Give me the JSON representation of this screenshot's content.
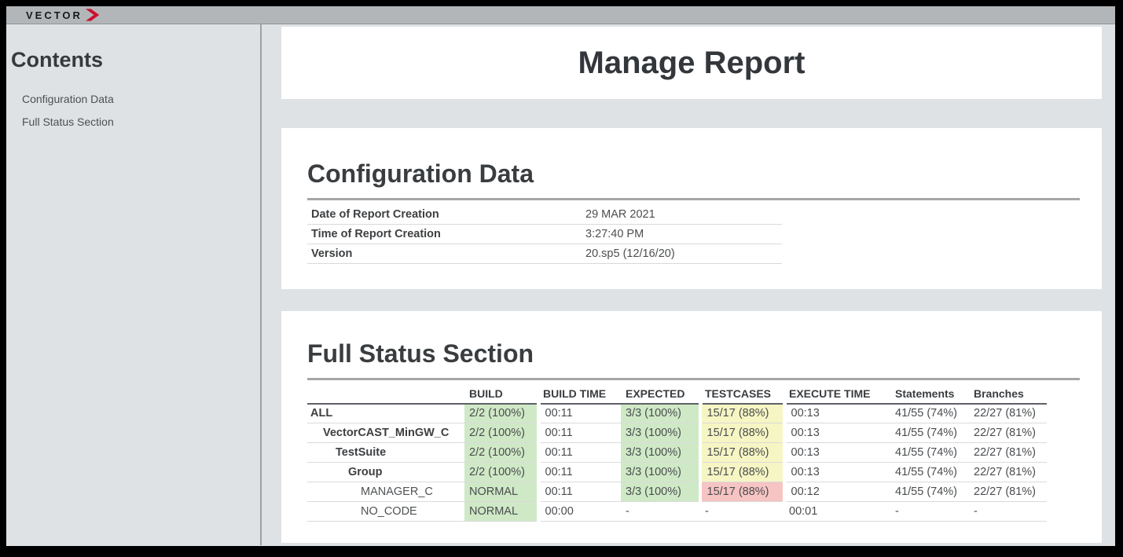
{
  "brand": {
    "logo_text": "VECTOR",
    "chevron_color": "#ce0e2d",
    "topbar_color": "#b2b6b9"
  },
  "sidebar": {
    "title": "Contents",
    "items": [
      {
        "label": "Configuration Data"
      },
      {
        "label": "Full Status Section"
      }
    ]
  },
  "report": {
    "title": "Manage Report"
  },
  "config_section": {
    "heading": "Configuration Data",
    "rows": [
      {
        "label": "Date of Report Creation",
        "value": "29 MAR 2021"
      },
      {
        "label": "Time of Report Creation",
        "value": "3:27:40 PM"
      },
      {
        "label": "Version",
        "value": "20.sp5 (12/16/20)"
      }
    ]
  },
  "status_section": {
    "heading": "Full Status Section",
    "columns": [
      "",
      "BUILD",
      "BUILD TIME",
      "EXPECTED",
      "TESTCASES",
      "EXECUTE TIME",
      "Statements",
      "Branches"
    ],
    "colors": {
      "pass": "#cfe9c6",
      "partial": "#f6f6c4",
      "fail": "#f6c4c3"
    },
    "rows": [
      {
        "name": "ALL",
        "indent": 0,
        "bold": true,
        "cells": [
          {
            "text": "2/2 (100%)",
            "status": "pass"
          },
          {
            "text": "00:11"
          },
          {
            "text": "3/3 (100%)",
            "status": "pass"
          },
          {
            "text": "15/17 (88%)",
            "status": "partial"
          },
          {
            "text": "00:13"
          },
          {
            "text": "41/55 (74%)"
          },
          {
            "text": "22/27 (81%)"
          }
        ]
      },
      {
        "name": "VectorCAST_MinGW_C",
        "indent": 1,
        "bold": true,
        "cells": [
          {
            "text": "2/2 (100%)",
            "status": "pass"
          },
          {
            "text": "00:11"
          },
          {
            "text": "3/3 (100%)",
            "status": "pass"
          },
          {
            "text": "15/17 (88%)",
            "status": "partial"
          },
          {
            "text": "00:13"
          },
          {
            "text": "41/55 (74%)"
          },
          {
            "text": "22/27 (81%)"
          }
        ]
      },
      {
        "name": "TestSuite",
        "indent": 2,
        "bold": true,
        "cells": [
          {
            "text": "2/2 (100%)",
            "status": "pass"
          },
          {
            "text": "00:11"
          },
          {
            "text": "3/3 (100%)",
            "status": "pass"
          },
          {
            "text": "15/17 (88%)",
            "status": "partial"
          },
          {
            "text": "00:13"
          },
          {
            "text": "41/55 (74%)"
          },
          {
            "text": "22/27 (81%)"
          }
        ]
      },
      {
        "name": "Group",
        "indent": 3,
        "bold": true,
        "cells": [
          {
            "text": "2/2 (100%)",
            "status": "pass"
          },
          {
            "text": "00:11"
          },
          {
            "text": "3/3 (100%)",
            "status": "pass"
          },
          {
            "text": "15/17 (88%)",
            "status": "partial"
          },
          {
            "text": "00:13"
          },
          {
            "text": "41/55 (74%)"
          },
          {
            "text": "22/27 (81%)"
          }
        ]
      },
      {
        "name": "MANAGER_C",
        "indent": 4,
        "bold": false,
        "cells": [
          {
            "text": "NORMAL",
            "status": "pass"
          },
          {
            "text": "00:11"
          },
          {
            "text": "3/3 (100%)",
            "status": "pass"
          },
          {
            "text": "15/17 (88%)",
            "status": "fail"
          },
          {
            "text": "00:12"
          },
          {
            "text": "41/55 (74%)"
          },
          {
            "text": "22/27 (81%)"
          }
        ]
      },
      {
        "name": "NO_CODE",
        "indent": 4,
        "bold": false,
        "cells": [
          {
            "text": "NORMAL",
            "status": "pass"
          },
          {
            "text": "00:00"
          },
          {
            "text": "-"
          },
          {
            "text": "-"
          },
          {
            "text": "00:01"
          },
          {
            "text": "-"
          },
          {
            "text": "-"
          }
        ]
      }
    ]
  }
}
